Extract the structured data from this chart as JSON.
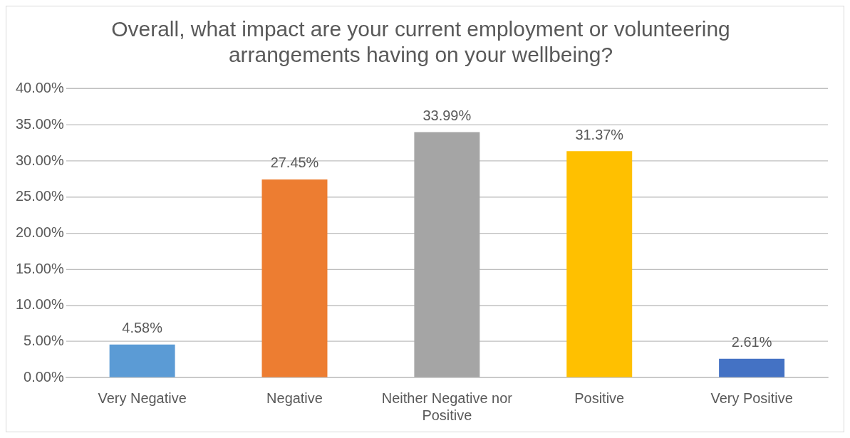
{
  "chart_data": {
    "type": "bar",
    "title": "Overall, what impact are your current employment or volunteering arrangements having on your wellbeing?",
    "categories": [
      "Very Negative",
      "Negative",
      "Neither Negative nor Positive",
      "Positive",
      "Very Positive"
    ],
    "values": [
      4.58,
      27.45,
      33.99,
      31.37,
      2.61
    ],
    "value_labels": [
      "4.58%",
      "27.45%",
      "33.99%",
      "31.37%",
      "2.61%"
    ],
    "colors": [
      "#5b9bd5",
      "#ed7d31",
      "#a5a5a5",
      "#ffc000",
      "#4472c4"
    ],
    "ylim": [
      0,
      40
    ],
    "yticks": [
      {
        "value": 0,
        "label": "0.00%"
      },
      {
        "value": 5,
        "label": "5.00%"
      },
      {
        "value": 10,
        "label": "10.00%"
      },
      {
        "value": 15,
        "label": "15.00%"
      },
      {
        "value": 20,
        "label": "20.00%"
      },
      {
        "value": 25,
        "label": "25.00%"
      },
      {
        "value": 30,
        "label": "30.00%"
      },
      {
        "value": 35,
        "label": "35.00%"
      },
      {
        "value": 40,
        "label": "40.00%"
      }
    ],
    "grid": "y",
    "legend": false
  }
}
